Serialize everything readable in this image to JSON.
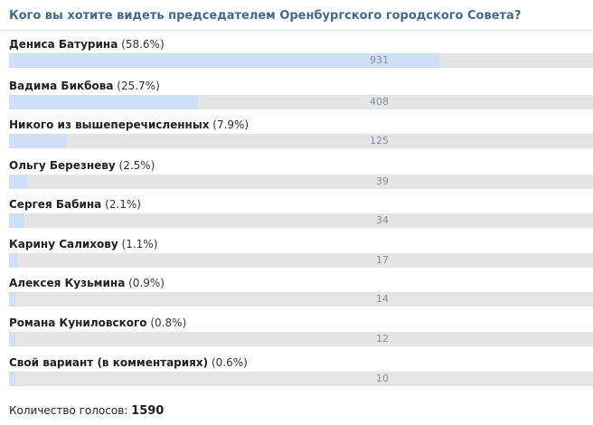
{
  "poll": {
    "question": "Кого вы хотите видеть председателем Оренбургского городского Совета?",
    "options": [
      {
        "name": "Дениса Батурина",
        "percent_label": "(58.6%)",
        "percent": 58.6,
        "votes": "931"
      },
      {
        "name": "Вадима Бикбова",
        "percent_label": "(25.7%)",
        "percent": 25.7,
        "votes": "408"
      },
      {
        "name": "Никого из вышеперечисленных",
        "percent_label": "(7.9%)",
        "percent": 7.9,
        "votes": "125"
      },
      {
        "name": "Ольгу Березневу",
        "percent_label": "(2.5%)",
        "percent": 2.5,
        "votes": "39"
      },
      {
        "name": "Сергея Бабина",
        "percent_label": "(2.1%)",
        "percent": 2.1,
        "votes": "34"
      },
      {
        "name": "Карину Салихову",
        "percent_label": "(1.1%)",
        "percent": 1.1,
        "votes": "17"
      },
      {
        "name": "Алексея Кузьмина",
        "percent_label": "(0.9%)",
        "percent": 0.9,
        "votes": "14"
      },
      {
        "name": "Романа Куниловского",
        "percent_label": "(0.8%)",
        "percent": 0.8,
        "votes": "12"
      },
      {
        "name": "Свой вариант (в комментариях)",
        "percent_label": "(0.6%)",
        "percent": 0.6,
        "votes": "10"
      }
    ],
    "total_label": "Количество голосов:",
    "total_value": "1590"
  },
  "colors": {
    "title": "#45688e",
    "bar_fill": "#cde0f7",
    "bar_track": "#e5e5e5",
    "count_text": "#7b8ea6"
  }
}
